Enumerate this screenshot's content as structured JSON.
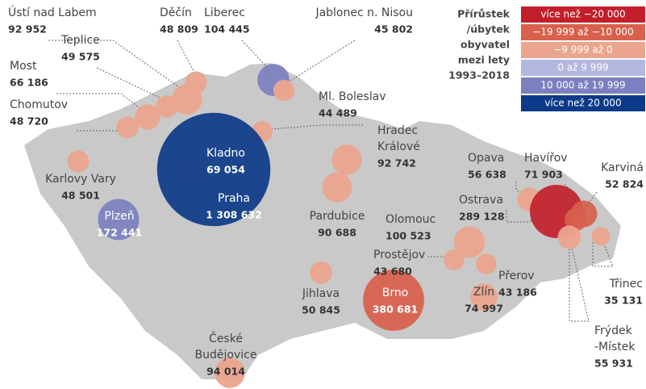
{
  "legend": {
    "title": [
      "Přírůstek",
      "/úbytek",
      "obyvatel",
      "mezi lety",
      "1993–2018"
    ],
    "items": [
      {
        "label": "více než −20 000",
        "color": "#c21f2b"
      },
      {
        "label": "−19 999 až −10 000",
        "color": "#d8604c"
      },
      {
        "label": "−9 999 až 0",
        "color": "#eba58e"
      },
      {
        "label": "0 až 9 999",
        "color": "#b5b8de"
      },
      {
        "label": "10 000 až 19 999",
        "color": "#7b80c0"
      },
      {
        "label": "více než 20 000",
        "color": "#0c3a88"
      }
    ]
  },
  "cities": [
    {
      "name": "Ústí nad Labem",
      "population": 92952,
      "population_label": "92 952",
      "color": "#eba58e"
    },
    {
      "name": "Děčín",
      "population": 48809,
      "population_label": "48 809",
      "color": "#eba58e"
    },
    {
      "name": "Liberec",
      "population": 104445,
      "population_label": "104 445",
      "color": "#7b80c0"
    },
    {
      "name": "Jablonec n. Nisou",
      "population": 45802,
      "population_label": "45 802",
      "color": "#eba58e"
    },
    {
      "name": "Teplice",
      "population": 49575,
      "population_label": "49 575",
      "color": "#eba58e"
    },
    {
      "name": "Most",
      "population": 66186,
      "population_label": "66 186",
      "color": "#eba58e"
    },
    {
      "name": "Chomutov",
      "population": 48720,
      "population_label": "48 720",
      "color": "#eba58e"
    },
    {
      "name": "Ml. Boleslav",
      "population": 44489,
      "population_label": "44 489",
      "color": "#eba58e"
    },
    {
      "name": "Kladno",
      "population": 69054,
      "population_label": "69 054",
      "color": "#eba58e"
    },
    {
      "name": "Praha",
      "population": 1308632,
      "population_label": "1 308 632",
      "color": "#0c3a88"
    },
    {
      "name": "Karlovy Vary",
      "population": 48501,
      "population_label": "48 501",
      "color": "#eba58e"
    },
    {
      "name": "Plzeň",
      "population": 172441,
      "population_label": "172 441",
      "color": "#7b80c0"
    },
    {
      "name": "Hradec Králové",
      "population": 92742,
      "population_label": "92 742",
      "color": "#eba58e"
    },
    {
      "name": "Pardubice",
      "population": 90688,
      "population_label": "90 688",
      "color": "#eba58e"
    },
    {
      "name": "Jihlava",
      "population": 50845,
      "population_label": "50 845",
      "color": "#eba58e"
    },
    {
      "name": "České Budějovice",
      "population": 94014,
      "population_label": "94 014",
      "color": "#eba58e"
    },
    {
      "name": "Brno",
      "population": 380681,
      "population_label": "380 681",
      "color": "#d8604c"
    },
    {
      "name": "Zlín",
      "population": 74997,
      "population_label": "74 997",
      "color": "#eba58e"
    },
    {
      "name": "Olomouc",
      "population": 100523,
      "population_label": "100 523",
      "color": "#eba58e"
    },
    {
      "name": "Prostějov",
      "population": 43680,
      "population_label": "43 680",
      "color": "#eba58e"
    },
    {
      "name": "Přerov",
      "population": 43186,
      "population_label": "43 186",
      "color": "#eba58e"
    },
    {
      "name": "Opava",
      "population": 56638,
      "population_label": "56 638",
      "color": "#eba58e"
    },
    {
      "name": "Ostrava",
      "population": 289128,
      "population_label": "289 128",
      "color": "#c21f2b"
    },
    {
      "name": "Havířov",
      "population": 71903,
      "population_label": "71 903",
      "color": "#d8604c"
    },
    {
      "name": "Karviná",
      "population": 52824,
      "population_label": "52 824",
      "color": "#d8604c"
    },
    {
      "name": "Třinec",
      "population": 35131,
      "population_label": "35 131",
      "color": "#eba58e"
    },
    {
      "name": "Frýdek-Místek",
      "population": 55931,
      "population_label": "55 931",
      "color": "#eba58e"
    }
  ]
}
